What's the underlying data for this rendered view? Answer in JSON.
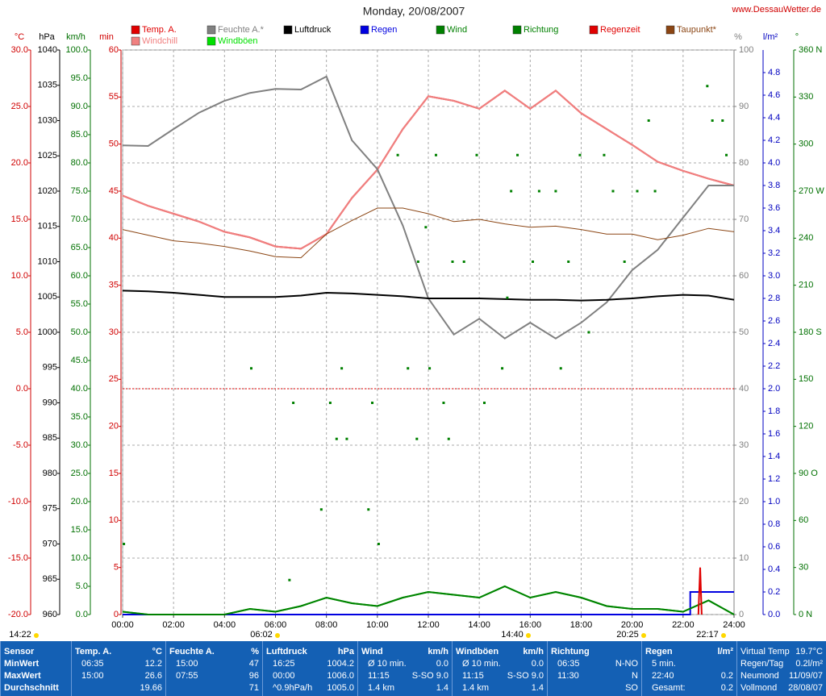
{
  "chart_data": {
    "type": "line",
    "title": "Monday, 20/08/2007",
    "source": "www.DessauWetter.de",
    "xlim": [
      0,
      24
    ],
    "xticks": [
      {
        "value": 0,
        "label": "00:00"
      },
      {
        "value": 2,
        "label": "02:00"
      },
      {
        "value": 4,
        "label": "04:00"
      },
      {
        "value": 6,
        "label": "06:00"
      },
      {
        "value": 8,
        "label": "08:00"
      },
      {
        "value": 10,
        "label": "10:00"
      },
      {
        "value": 12,
        "label": "12:00"
      },
      {
        "value": 14,
        "label": "14:00"
      },
      {
        "value": 16,
        "label": "16:00"
      },
      {
        "value": 18,
        "label": "18:00"
      },
      {
        "value": 20,
        "label": "20:00"
      },
      {
        "value": 22,
        "label": "22:00"
      },
      {
        "value": 24,
        "label": "24:00"
      }
    ],
    "grid": true,
    "grid_axis": 4,
    "reference_line": {
      "axis": 0,
      "value": 0,
      "color": "#e00000"
    },
    "y_axes": [
      {
        "label": "°C",
        "color": "#d00000",
        "ylim": [
          -20,
          30
        ],
        "yticks": [
          {
            "value": 30,
            "label": "30.0"
          },
          {
            "value": 25,
            "label": "25.0"
          },
          {
            "value": 20,
            "label": "20.0"
          },
          {
            "value": 15,
            "label": "15.0"
          },
          {
            "value": 10,
            "label": "10.0"
          },
          {
            "value": 5,
            "label": "5.0"
          },
          {
            "value": 0,
            "label": "0.0"
          },
          {
            "value": -5,
            "label": "-5.0"
          },
          {
            "value": -10,
            "label": "-10.0"
          },
          {
            "value": -15,
            "label": "-15.0"
          },
          {
            "value": -20,
            "label": "-20.0"
          }
        ]
      },
      {
        "label": "hPa",
        "color": "#000000",
        "ylim": [
          960,
          1040
        ],
        "yticks": [
          1040,
          1035,
          1030,
          1025,
          1020,
          1015,
          1010,
          1005,
          1000,
          995,
          990,
          985,
          980,
          975,
          970,
          965,
          960
        ]
      },
      {
        "label": "km/h",
        "color": "#007000",
        "ylim": [
          0,
          100
        ],
        "yticks": [
          {
            "value": 100,
            "label": "100.0"
          },
          {
            "value": 95,
            "label": "95.0"
          },
          {
            "value": 90,
            "label": "90.0"
          },
          {
            "value": 85,
            "label": "85.0"
          },
          {
            "value": 80,
            "label": "80.0"
          },
          {
            "value": 75,
            "label": "75.0"
          },
          {
            "value": 70,
            "label": "70.0"
          },
          {
            "value": 65,
            "label": "65.0"
          },
          {
            "value": 60,
            "label": "60.0"
          },
          {
            "value": 55,
            "label": "55.0"
          },
          {
            "value": 50,
            "label": "50.0"
          },
          {
            "value": 45,
            "label": "45.0"
          },
          {
            "value": 40,
            "label": "40.0"
          },
          {
            "value": 35,
            "label": "35.0"
          },
          {
            "value": 30,
            "label": "30.0"
          },
          {
            "value": 25,
            "label": "25.0"
          },
          {
            "value": 20,
            "label": "20.0"
          },
          {
            "value": 15,
            "label": "15.0"
          },
          {
            "value": 10,
            "label": "10.0"
          },
          {
            "value": 5,
            "label": "5.0"
          },
          {
            "value": 0,
            "label": "0.0"
          }
        ]
      },
      {
        "label": "min",
        "color": "#d00000",
        "ylim": [
          0,
          60
        ],
        "yticks": [
          60,
          55,
          50,
          45,
          40,
          35,
          30,
          25,
          20,
          15,
          10,
          5,
          0
        ]
      },
      {
        "label": "%",
        "color": "#808080",
        "ylim": [
          0,
          100
        ],
        "yticks": [
          100,
          90,
          80,
          70,
          60,
          50,
          40,
          30,
          20,
          10,
          0
        ]
      },
      {
        "label": "l/m²",
        "color": "#0000c0",
        "ylim": [
          0,
          5
        ],
        "yticks": [
          {
            "value": 4.8,
            "label": "4.8"
          },
          {
            "value": 4.6,
            "label": "4.6"
          },
          {
            "value": 4.4,
            "label": "4.4"
          },
          {
            "value": 4.2,
            "label": "4.2"
          },
          {
            "value": 4,
            "label": "4.0"
          },
          {
            "value": 3.8,
            "label": "3.8"
          },
          {
            "value": 3.6,
            "label": "3.6"
          },
          {
            "value": 3.4,
            "label": "3.4"
          },
          {
            "value": 3.2,
            "label": "3.2"
          },
          {
            "value": 3,
            "label": "3.0"
          },
          {
            "value": 2.8,
            "label": "2.8"
          },
          {
            "value": 2.6,
            "label": "2.6"
          },
          {
            "value": 2.4,
            "label": "2.4"
          },
          {
            "value": 2.2,
            "label": "2.2"
          },
          {
            "value": 2,
            "label": "2.0"
          },
          {
            "value": 1.8,
            "label": "1.8"
          },
          {
            "value": 1.6,
            "label": "1.6"
          },
          {
            "value": 1.4,
            "label": "1.4"
          },
          {
            "value": 1.2,
            "label": "1.2"
          },
          {
            "value": 1,
            "label": "1.0"
          },
          {
            "value": 0.8,
            "label": "0.8"
          },
          {
            "value": 0.6,
            "label": "0.6"
          },
          {
            "value": 0.4,
            "label": "0.4"
          },
          {
            "value": 0.2,
            "label": "0.2"
          },
          {
            "value": 0,
            "label": "0.0"
          }
        ]
      },
      {
        "label": "°",
        "color": "#007000",
        "ylim": [
          0,
          360
        ],
        "yticks": [
          {
            "value": 360,
            "label": "360 N"
          },
          330,
          300,
          {
            "value": 270,
            "label": "270 W"
          },
          240,
          210,
          {
            "value": 180,
            "label": "180 S"
          },
          150,
          120,
          {
            "value": 90,
            "label": "90 O"
          },
          60,
          30,
          {
            "value": 0,
            "label": "0 N"
          }
        ]
      }
    ],
    "x": [
      0,
      1,
      2,
      3,
      4,
      5,
      6,
      7,
      8,
      9,
      10,
      11,
      12,
      13,
      14,
      15,
      16,
      17,
      18,
      19,
      20,
      21,
      22,
      23,
      24
    ],
    "series": [
      {
        "name": "Temp. A.",
        "color": "#e00000",
        "axis": 0,
        "values": [
          17.1,
          16.2,
          15.5,
          14.8,
          13.9,
          13.4,
          12.6,
          12.4,
          13.7,
          16.9,
          19.4,
          23.0,
          25.9,
          25.5,
          24.8,
          26.4,
          24.8,
          26.4,
          24.4,
          23.0,
          21.6,
          20.1,
          19.3,
          18.6,
          18.0
        ]
      },
      {
        "name": "Windchill",
        "color": "#f08080",
        "axis": 0,
        "values": [
          17.1,
          16.2,
          15.5,
          14.8,
          13.9,
          13.4,
          12.6,
          12.4,
          13.7,
          16.9,
          19.4,
          23.0,
          25.9,
          25.5,
          24.8,
          26.4,
          24.8,
          26.4,
          24.4,
          23.0,
          21.6,
          20.1,
          19.3,
          18.6,
          18.0
        ]
      },
      {
        "name": "Feuchte A.*",
        "color": "#808080",
        "axis": 4,
        "values": [
          83.1,
          83.0,
          86.0,
          88.9,
          91.0,
          92.4,
          93.1,
          93.0,
          95.3,
          84.0,
          78.9,
          68.9,
          56.0,
          49.6,
          52.4,
          48.9,
          51.7,
          48.9,
          51.7,
          55.3,
          61.0,
          64.6,
          70.3,
          76.0,
          76.0
        ]
      },
      {
        "name": "Windböen",
        "color": "#00e000",
        "axis": 2,
        "values": [
          0.5,
          0,
          0,
          0,
          0,
          1.0,
          0.5,
          1.5,
          3.0,
          2.0,
          1.5,
          3.0,
          4.0,
          3.5,
          3.0,
          5.0,
          3.0,
          4.0,
          3.0,
          1.5,
          1.0,
          1.0,
          0.5,
          2.5,
          0
        ]
      },
      {
        "name": "Luftdruck",
        "color": "#000000",
        "axis": 1,
        "width": 2,
        "values": [
          1005.9,
          1005.8,
          1005.6,
          1005.3,
          1005.0,
          1005.0,
          1005.0,
          1005.2,
          1005.6,
          1005.5,
          1005.3,
          1005.1,
          1004.8,
          1004.8,
          1004.8,
          1004.7,
          1004.6,
          1004.6,
          1004.5,
          1004.6,
          1004.8,
          1005.1,
          1005.3,
          1005.2,
          1004.6
        ]
      },
      {
        "name": "Regen",
        "color": "#0000e0",
        "axis": 5,
        "x": [
          0,
          22.28,
          22.28,
          24
        ],
        "values": [
          0,
          0,
          0.2,
          0.2
        ]
      },
      {
        "name": "Wind",
        "color": "#008000",
        "axis": 2,
        "values": [
          0.5,
          0,
          0,
          0,
          0,
          1.0,
          0.5,
          1.5,
          3.0,
          2.0,
          1.5,
          3.0,
          4.0,
          3.5,
          3.0,
          5.0,
          3.0,
          4.0,
          3.0,
          1.5,
          1.0,
          1.0,
          0.5,
          2.5,
          0
        ]
      },
      {
        "name": "Richtung",
        "color": "#008000",
        "axis": 6,
        "type": "scatter",
        "x": [
          0.05,
          5.05,
          6.55,
          6.7,
          7.8,
          8.15,
          8.4,
          8.6,
          8.8,
          9.65,
          9.8,
          10.05,
          10.8,
          11.2,
          11.55,
          11.6,
          11.9,
          12.05,
          12.3,
          12.6,
          12.8,
          12.95,
          13.4,
          13.9,
          14.2,
          14.9,
          15.1,
          15.25,
          15.5,
          16.1,
          16.35,
          17.0,
          17.2,
          17.5,
          17.95,
          18.3,
          18.9,
          19.25,
          19.7,
          20.2,
          20.65,
          20.9,
          22.95,
          23.15,
          23.55,
          23.7
        ],
        "values": [
          45,
          157,
          22,
          135,
          67,
          135,
          112,
          157,
          112,
          67,
          135,
          45,
          293,
          157,
          112,
          225,
          247,
          157,
          293,
          135,
          112,
          225,
          225,
          293,
          135,
          157,
          202,
          270,
          293,
          225,
          270,
          270,
          157,
          225,
          293,
          180,
          293,
          270,
          225,
          270,
          315,
          270,
          337,
          315,
          315,
          293
        ]
      },
      {
        "name": "Regenzeit",
        "color": "#e00000",
        "axis": 3,
        "x": [
          22.6,
          22.67,
          22.73
        ],
        "values": [
          0,
          5,
          0
        ]
      },
      {
        "name": "Taupunkt*",
        "color": "#8b4513",
        "axis": 0,
        "width": 1,
        "values": [
          14.1,
          13.6,
          13.1,
          12.9,
          12.6,
          12.2,
          11.7,
          11.6,
          13.7,
          14.9,
          16.0,
          16.0,
          15.5,
          14.8,
          15.0,
          14.6,
          14.3,
          14.4,
          14.1,
          13.7,
          13.7,
          13.2,
          13.6,
          14.2,
          13.9
        ]
      }
    ],
    "annotations": [
      "14:22",
      "06:02",
      "20:25",
      "14:40",
      "22:17"
    ]
  },
  "stats_table": {
    "columns": [
      {
        "header": "Sensor",
        "rows": [
          "MinWert",
          "MaxWert",
          "Durchschnitt"
        ]
      },
      {
        "header": "Temp. A.",
        "unit": "°C",
        "rows": [
          [
            "06:35",
            "12.2"
          ],
          [
            "15:00",
            "26.6"
          ],
          [
            null,
            "19.66"
          ]
        ]
      },
      {
        "header": "Feuchte A.",
        "unit": "%",
        "rows": [
          [
            "15:00",
            "47"
          ],
          [
            "07:55",
            "96"
          ],
          [
            null,
            "71"
          ]
        ]
      },
      {
        "header": "Luftdruck",
        "unit": "hPa",
        "rows": [
          [
            "16:25",
            "1004.2"
          ],
          [
            "00:00",
            "1006.0"
          ],
          [
            "^0.9hPa/h",
            "1005.0"
          ]
        ]
      },
      {
        "header": "Wind",
        "unit": "km/h",
        "rows": [
          [
            "Ø 10 min.",
            "0.0"
          ],
          [
            "11:15",
            "S-SO 9.0"
          ],
          [
            "1.4 km",
            "1.4"
          ]
        ]
      },
      {
        "header": "Windböen",
        "unit": "km/h",
        "rows": [
          [
            "Ø 10 min.",
            "0.0"
          ],
          [
            "11:15",
            "S-SO 9.0"
          ],
          [
            "1.4 km",
            "1.4"
          ]
        ]
      },
      {
        "header": "Richtung",
        "rows": [
          [
            "06:35",
            "N-NO"
          ],
          [
            "11:30",
            "N"
          ],
          [
            null,
            "SO"
          ]
        ]
      },
      {
        "header": "Regen",
        "unit": "l/m²",
        "rows": [
          [
            "5 min.",
            null
          ],
          [
            "22:40",
            "0.2"
          ],
          [
            "Gesamt:",
            "0.2"
          ]
        ]
      },
      {
        "rows": [
          [
            "Virtual Temp",
            "19.7°C"
          ],
          [
            "Regen/Tag",
            "0.2l/m²"
          ],
          [
            "Neumond",
            "11/09/07"
          ],
          [
            "Vollmond",
            "28/08/07"
          ]
        ]
      }
    ]
  }
}
